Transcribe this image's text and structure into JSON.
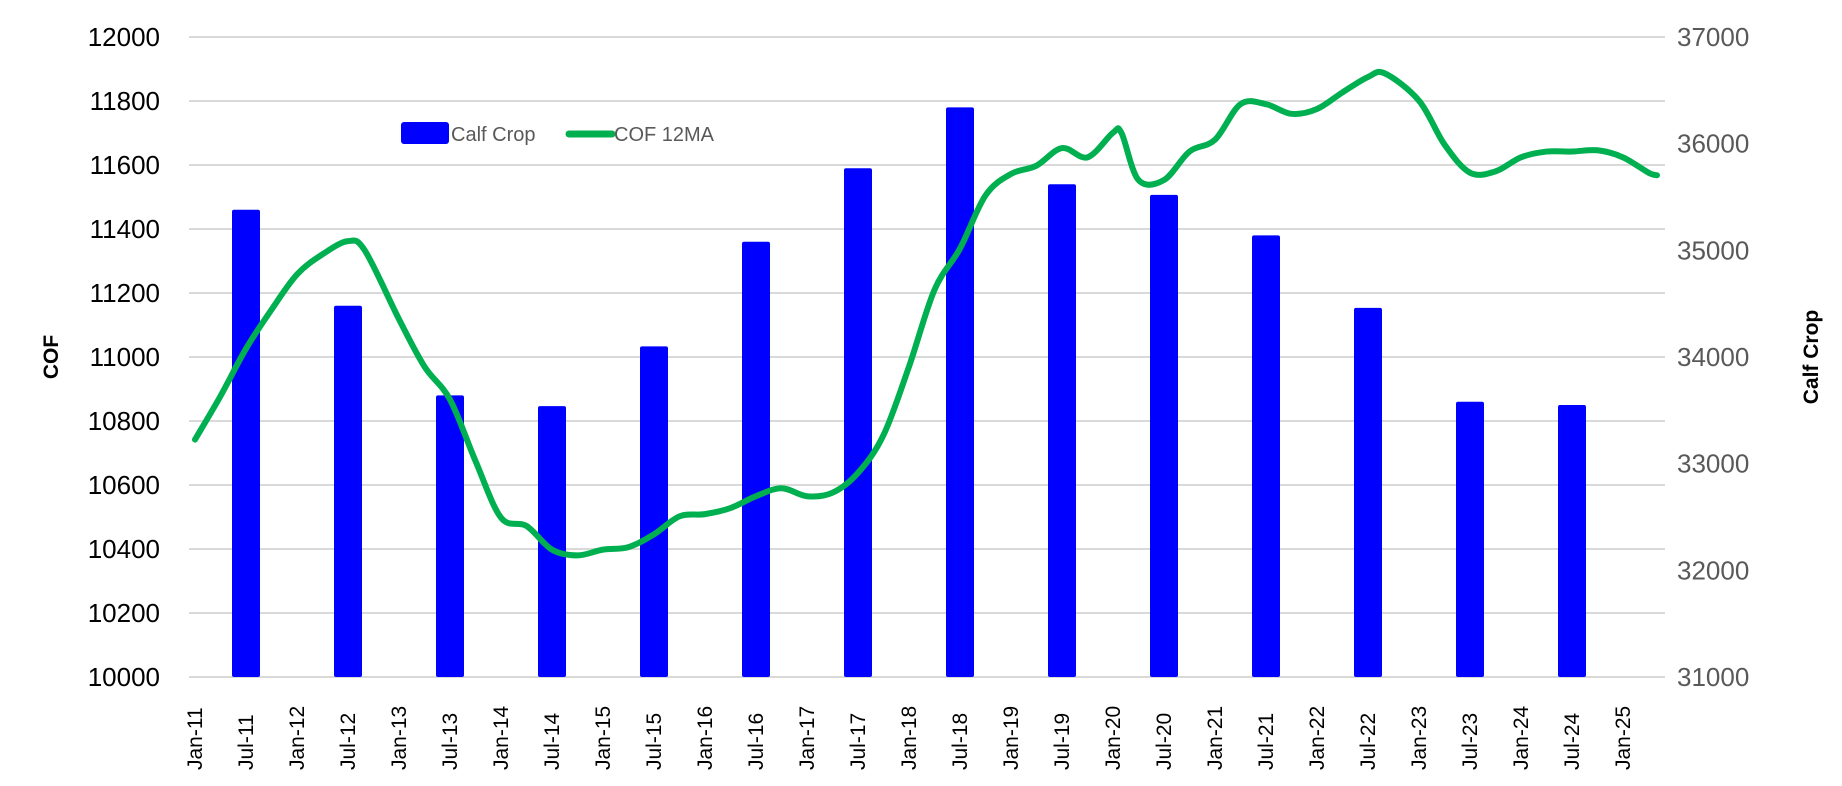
{
  "chart_data": {
    "type": "bar+line",
    "title": "",
    "y_left": {
      "label": "COF",
      "range": [
        10000,
        12000
      ],
      "ticks": [
        "10000",
        "10200",
        "10400",
        "10600",
        "10800",
        "11000",
        "11200",
        "11400",
        "11600",
        "11800",
        "12000"
      ]
    },
    "y_right": {
      "label": "Calf Crop",
      "range": [
        31000,
        37000
      ],
      "ticks": [
        "31000",
        "32000",
        "33000",
        "34000",
        "35000",
        "36000",
        "37000"
      ]
    },
    "x_ticks": [
      "Jan-11",
      "Jul-11",
      "Jan-12",
      "Jul-12",
      "Jan-13",
      "Jul-13",
      "Jan-14",
      "Jul-14",
      "Jan-15",
      "Jul-15",
      "Jan-16",
      "Jul-16",
      "Jan-17",
      "Jul-17",
      "Jan-18",
      "Jul-18",
      "Jan-19",
      "Jul-19",
      "Jan-20",
      "Jul-20",
      "Jan-21",
      "Jul-21",
      "Jan-22",
      "Jul-22",
      "Jan-23",
      "Jul-23",
      "Jan-24",
      "Jul-24",
      "Jan-25"
    ],
    "grid": true,
    "legend": {
      "placement": "top-left",
      "entries": [
        "Calf Crop",
        "COF 12MA"
      ]
    },
    "colors": {
      "bars": "#0000FF",
      "line": "#00B050",
      "grid": "#D9D9D9"
    },
    "series": [
      {
        "name": "Calf Crop",
        "type": "bar",
        "axis": "right",
        "dates": [
          "2011-07",
          "2012-07",
          "2013-07",
          "2014-07",
          "2015-07",
          "2016-07",
          "2017-07",
          "2018-07",
          "2019-07",
          "2020-07",
          "2021-07",
          "2022-07",
          "2023-07",
          "2024-07"
        ],
        "values": [
          35380,
          34480,
          33640,
          33540,
          34100,
          35080,
          35770,
          36340,
          35620,
          35520,
          35140,
          34460,
          33580,
          33550
        ]
      },
      {
        "name": "COF 12MA",
        "type": "line",
        "axis": "left",
        "dates": [
          "2011-01",
          "2011-04",
          "2011-07",
          "2011-10",
          "2012-01",
          "2012-04",
          "2012-07",
          "2012-09",
          "2013-01",
          "2013-04",
          "2013-07",
          "2013-10",
          "2014-01",
          "2014-04",
          "2014-07",
          "2014-10",
          "2015-01",
          "2015-04",
          "2015-07",
          "2015-10",
          "2016-01",
          "2016-04",
          "2016-07",
          "2016-10",
          "2017-01",
          "2017-04",
          "2017-07",
          "2017-10",
          "2018-01",
          "2018-04",
          "2018-07",
          "2018-10",
          "2019-01",
          "2019-04",
          "2019-07",
          "2019-10",
          "2020-01",
          "2020-02",
          "2020-04",
          "2020-07",
          "2020-10",
          "2021-01",
          "2021-04",
          "2021-07",
          "2021-10",
          "2022-01",
          "2022-04",
          "2022-07",
          "2022-09",
          "2023-01",
          "2023-04",
          "2023-07",
          "2023-10",
          "2024-01",
          "2024-04",
          "2024-07",
          "2024-10",
          "2025-01",
          "2025-04",
          "2025-05"
        ],
        "values": [
          10742,
          10878,
          11026,
          11148,
          11258,
          11321,
          11362,
          11332,
          11118,
          10970,
          10867,
          10675,
          10498,
          10472,
          10398,
          10380,
          10398,
          10406,
          10446,
          10502,
          10509,
          10528,
          10565,
          10590,
          10565,
          10576,
          10638,
          10756,
          10970,
          11210,
          11339,
          11505,
          11572,
          11598,
          11653,
          11624,
          11701,
          11700,
          11553,
          11553,
          11642,
          11679,
          11790,
          11790,
          11760,
          11775,
          11827,
          11875,
          11886,
          11801,
          11664,
          11576,
          11580,
          11624,
          11642,
          11642,
          11646,
          11624,
          11576,
          11568
        ]
      }
    ]
  }
}
